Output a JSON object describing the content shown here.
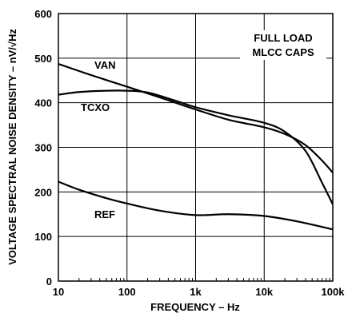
{
  "chart_data": {
    "type": "line",
    "title": "",
    "xlabel": "FREQUENCY – Hz",
    "ylabel": "VOLTAGE SPECTRAL NOISE DENSITY – nV/√Hz",
    "x_scale": "log",
    "xlim": [
      10,
      100000
    ],
    "ylim": [
      0,
      600
    ],
    "grid": true,
    "x_ticks": [
      10,
      100,
      1000,
      10000,
      100000
    ],
    "x_tick_labels": [
      "10",
      "100",
      "1k",
      "10k",
      "100k"
    ],
    "y_ticks": [
      0,
      100,
      200,
      300,
      400,
      500,
      600
    ],
    "y_tick_labels": [
      "0",
      "100",
      "200",
      "300",
      "400",
      "500",
      "600"
    ],
    "annotation": [
      "FULL LOAD",
      "MLCC CAPS"
    ],
    "series": [
      {
        "name": "VAN",
        "x": [
          10,
          30,
          100,
          300,
          1000,
          3000,
          10000,
          20000,
          40000,
          70000,
          100000
        ],
        "y": [
          487,
          462,
          436,
          412,
          385,
          362,
          345,
          330,
          305,
          270,
          243
        ]
      },
      {
        "name": "TCXO",
        "x": [
          10,
          20,
          50,
          100,
          200,
          500,
          1000,
          3000,
          10000,
          20000,
          40000,
          70000,
          100000
        ],
        "y": [
          418,
          424,
          427,
          427,
          423,
          405,
          390,
          372,
          355,
          335,
          292,
          220,
          172
        ]
      },
      {
        "name": "REF",
        "x": [
          10,
          20,
          50,
          100,
          300,
          1000,
          3000,
          10000,
          30000,
          100000
        ],
        "y": [
          223,
          205,
          186,
          174,
          158,
          148,
          150,
          146,
          134,
          116
        ]
      }
    ]
  }
}
